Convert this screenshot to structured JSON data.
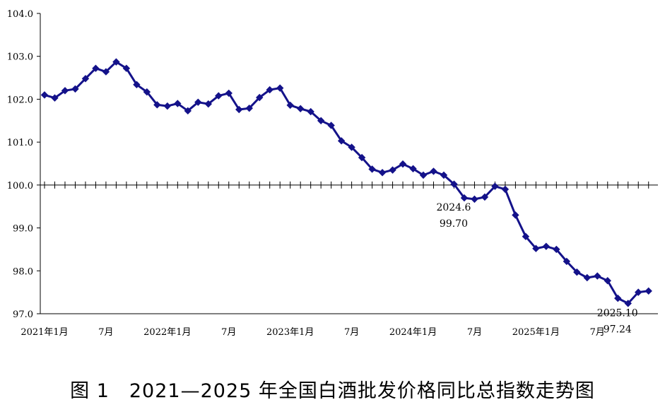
{
  "chart_data": {
    "type": "line",
    "ylim": [
      97.0,
      104.0
    ],
    "y_ticks": [
      "104.0",
      "103.0",
      "102.0",
      "101.0",
      "100.0",
      "99.0",
      "98.0",
      "97.0"
    ],
    "x_tick_labels": [
      "2021年1月",
      "7月",
      "2022年1月",
      "7月",
      "2023年1月",
      "7月",
      "2024年1月",
      "7月",
      "2025年1月",
      "7月"
    ],
    "reference_line": 100.0,
    "series": [
      {
        "color": "#14128a",
        "values": [
          102.1,
          102.03,
          102.2,
          102.24,
          102.48,
          102.72,
          102.64,
          102.87,
          102.72,
          102.34,
          102.17,
          101.87,
          101.84,
          101.9,
          101.73,
          101.93,
          101.89,
          102.08,
          102.14,
          101.76,
          101.79,
          102.04,
          102.22,
          102.26,
          101.86,
          101.78,
          101.71,
          101.5,
          101.39,
          101.03,
          100.88,
          100.64,
          100.37,
          100.29,
          100.35,
          100.49,
          100.38,
          100.23,
          100.32,
          100.23,
          100.02,
          99.7,
          99.67,
          99.72,
          99.97,
          99.9,
          99.3,
          98.8,
          98.52,
          98.57,
          98.5,
          98.22,
          97.97,
          97.84,
          97.88,
          97.77,
          97.36,
          97.24,
          97.5,
          97.53
        ]
      }
    ],
    "annotations": [
      {
        "index": 41,
        "date": "2024.6",
        "value": "99.70"
      },
      {
        "index": 57,
        "date": "2025.10",
        "value": "97.24"
      }
    ]
  },
  "caption": "图 1　2021—2025 年全国白酒批发价格同比总指数走势图"
}
